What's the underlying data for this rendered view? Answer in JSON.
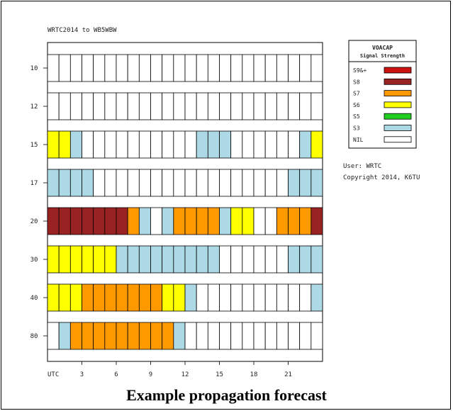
{
  "chart_data": {
    "type": "heatmap",
    "title": "WRTC2014 to WB5WBW",
    "x_axis": {
      "label": "UTC",
      "hours": [
        0,
        1,
        2,
        3,
        4,
        5,
        6,
        7,
        8,
        9,
        10,
        11,
        12,
        13,
        14,
        15,
        16,
        17,
        18,
        19,
        20,
        21,
        22,
        23
      ],
      "tick_labels": [
        "3",
        "6",
        "9",
        "12",
        "15",
        "18",
        "21"
      ],
      "tick_hours": [
        3,
        6,
        9,
        12,
        15,
        18,
        21
      ]
    },
    "bands": [
      "10",
      "12",
      "15",
      "17",
      "20",
      "30",
      "40",
      "80"
    ],
    "levels": [
      "S9&+",
      "S8",
      "S7",
      "S6",
      "S5",
      "S3",
      "NIL"
    ],
    "level_colors": {
      "S9&+": "#cc1111",
      "S8": "#992222",
      "S7": "#ff9900",
      "S6": "#ffff00",
      "S5": "#22cc22",
      "S3": "#add8e6",
      "NIL": "#ffffff"
    },
    "grid": {
      "10": [
        "NIL",
        "NIL",
        "NIL",
        "NIL",
        "NIL",
        "NIL",
        "NIL",
        "NIL",
        "NIL",
        "NIL",
        "NIL",
        "NIL",
        "NIL",
        "NIL",
        "NIL",
        "NIL",
        "NIL",
        "NIL",
        "NIL",
        "NIL",
        "NIL",
        "NIL",
        "NIL",
        "NIL"
      ],
      "12": [
        "NIL",
        "NIL",
        "NIL",
        "NIL",
        "NIL",
        "NIL",
        "NIL",
        "NIL",
        "NIL",
        "NIL",
        "NIL",
        "NIL",
        "NIL",
        "NIL",
        "NIL",
        "NIL",
        "NIL",
        "NIL",
        "NIL",
        "NIL",
        "NIL",
        "NIL",
        "NIL",
        "NIL"
      ],
      "15": [
        "S6",
        "S6",
        "S3",
        "NIL",
        "NIL",
        "NIL",
        "NIL",
        "NIL",
        "NIL",
        "NIL",
        "NIL",
        "NIL",
        "NIL",
        "S3",
        "S3",
        "S3",
        "NIL",
        "NIL",
        "NIL",
        "NIL",
        "NIL",
        "NIL",
        "S3",
        "S6"
      ],
      "17": [
        "S3",
        "S3",
        "S3",
        "S3",
        "NIL",
        "NIL",
        "NIL",
        "NIL",
        "NIL",
        "NIL",
        "NIL",
        "NIL",
        "NIL",
        "NIL",
        "NIL",
        "NIL",
        "NIL",
        "NIL",
        "NIL",
        "NIL",
        "NIL",
        "S3",
        "S3",
        "S3"
      ],
      "20": [
        "S8",
        "S8",
        "S8",
        "S8",
        "S8",
        "S8",
        "S8",
        "S7",
        "S3",
        "NIL",
        "S3",
        "S7",
        "S7",
        "S7",
        "S7",
        "S3",
        "S6",
        "S6",
        "NIL",
        "NIL",
        "S7",
        "S7",
        "S7",
        "S8"
      ],
      "30": [
        "S6",
        "S6",
        "S6",
        "S6",
        "S6",
        "S6",
        "S3",
        "S3",
        "S3",
        "S3",
        "S3",
        "S3",
        "S3",
        "S3",
        "S3",
        "NIL",
        "NIL",
        "NIL",
        "NIL",
        "NIL",
        "NIL",
        "S3",
        "S3",
        "S3"
      ],
      "40": [
        "S6",
        "S6",
        "S6",
        "S7",
        "S7",
        "S7",
        "S7",
        "S7",
        "S7",
        "S7",
        "S6",
        "S6",
        "S3",
        "NIL",
        "NIL",
        "NIL",
        "NIL",
        "NIL",
        "NIL",
        "NIL",
        "NIL",
        "NIL",
        "NIL",
        "S3"
      ],
      "80": [
        "NIL",
        "S3",
        "S7",
        "S7",
        "S7",
        "S7",
        "S7",
        "S7",
        "S7",
        "S7",
        "S7",
        "S3",
        "NIL",
        "NIL",
        "NIL",
        "NIL",
        "NIL",
        "NIL",
        "NIL",
        "NIL",
        "NIL",
        "NIL",
        "NIL",
        "NIL"
      ]
    },
    "legend": {
      "title_line1": "VOACAP",
      "title_line2": "Signal Strength",
      "placement": "right-top"
    },
    "notes": [
      "User: WRTC",
      "Copyright 2014, K6TU"
    ]
  },
  "caption": "Example propagation forecast"
}
